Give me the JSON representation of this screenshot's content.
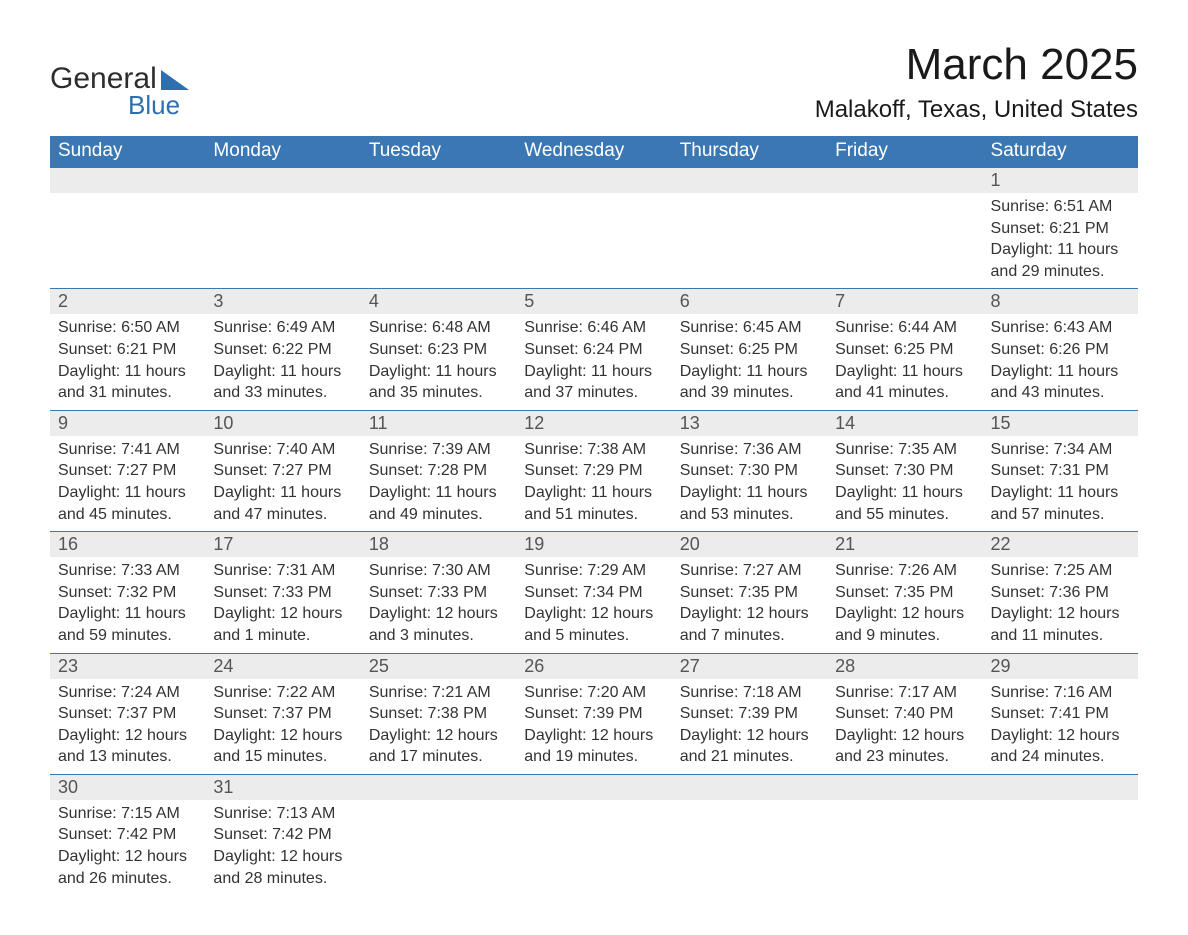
{
  "brand": {
    "word1": "General",
    "word2": "Blue",
    "accent_color": "#2e6fb0"
  },
  "title": "March 2025",
  "location": "Malakoff, Texas, United States",
  "header_bg": "#3a77b3",
  "daynum_bg": "#ececec",
  "weekdays": [
    "Sunday",
    "Monday",
    "Tuesday",
    "Wednesday",
    "Thursday",
    "Friday",
    "Saturday"
  ],
  "weeks": [
    [
      null,
      null,
      null,
      null,
      null,
      null,
      {
        "n": "1",
        "sr": "Sunrise: 6:51 AM",
        "ss": "Sunset: 6:21 PM",
        "dl": "Daylight: 11 hours and 29 minutes."
      }
    ],
    [
      {
        "n": "2",
        "sr": "Sunrise: 6:50 AM",
        "ss": "Sunset: 6:21 PM",
        "dl": "Daylight: 11 hours and 31 minutes."
      },
      {
        "n": "3",
        "sr": "Sunrise: 6:49 AM",
        "ss": "Sunset: 6:22 PM",
        "dl": "Daylight: 11 hours and 33 minutes."
      },
      {
        "n": "4",
        "sr": "Sunrise: 6:48 AM",
        "ss": "Sunset: 6:23 PM",
        "dl": "Daylight: 11 hours and 35 minutes."
      },
      {
        "n": "5",
        "sr": "Sunrise: 6:46 AM",
        "ss": "Sunset: 6:24 PM",
        "dl": "Daylight: 11 hours and 37 minutes."
      },
      {
        "n": "6",
        "sr": "Sunrise: 6:45 AM",
        "ss": "Sunset: 6:25 PM",
        "dl": "Daylight: 11 hours and 39 minutes."
      },
      {
        "n": "7",
        "sr": "Sunrise: 6:44 AM",
        "ss": "Sunset: 6:25 PM",
        "dl": "Daylight: 11 hours and 41 minutes."
      },
      {
        "n": "8",
        "sr": "Sunrise: 6:43 AM",
        "ss": "Sunset: 6:26 PM",
        "dl": "Daylight: 11 hours and 43 minutes."
      }
    ],
    [
      {
        "n": "9",
        "sr": "Sunrise: 7:41 AM",
        "ss": "Sunset: 7:27 PM",
        "dl": "Daylight: 11 hours and 45 minutes."
      },
      {
        "n": "10",
        "sr": "Sunrise: 7:40 AM",
        "ss": "Sunset: 7:27 PM",
        "dl": "Daylight: 11 hours and 47 minutes."
      },
      {
        "n": "11",
        "sr": "Sunrise: 7:39 AM",
        "ss": "Sunset: 7:28 PM",
        "dl": "Daylight: 11 hours and 49 minutes."
      },
      {
        "n": "12",
        "sr": "Sunrise: 7:38 AM",
        "ss": "Sunset: 7:29 PM",
        "dl": "Daylight: 11 hours and 51 minutes."
      },
      {
        "n": "13",
        "sr": "Sunrise: 7:36 AM",
        "ss": "Sunset: 7:30 PM",
        "dl": "Daylight: 11 hours and 53 minutes."
      },
      {
        "n": "14",
        "sr": "Sunrise: 7:35 AM",
        "ss": "Sunset: 7:30 PM",
        "dl": "Daylight: 11 hours and 55 minutes."
      },
      {
        "n": "15",
        "sr": "Sunrise: 7:34 AM",
        "ss": "Sunset: 7:31 PM",
        "dl": "Daylight: 11 hours and 57 minutes."
      }
    ],
    [
      {
        "n": "16",
        "sr": "Sunrise: 7:33 AM",
        "ss": "Sunset: 7:32 PM",
        "dl": "Daylight: 11 hours and 59 minutes."
      },
      {
        "n": "17",
        "sr": "Sunrise: 7:31 AM",
        "ss": "Sunset: 7:33 PM",
        "dl": "Daylight: 12 hours and 1 minute."
      },
      {
        "n": "18",
        "sr": "Sunrise: 7:30 AM",
        "ss": "Sunset: 7:33 PM",
        "dl": "Daylight: 12 hours and 3 minutes."
      },
      {
        "n": "19",
        "sr": "Sunrise: 7:29 AM",
        "ss": "Sunset: 7:34 PM",
        "dl": "Daylight: 12 hours and 5 minutes."
      },
      {
        "n": "20",
        "sr": "Sunrise: 7:27 AM",
        "ss": "Sunset: 7:35 PM",
        "dl": "Daylight: 12 hours and 7 minutes."
      },
      {
        "n": "21",
        "sr": "Sunrise: 7:26 AM",
        "ss": "Sunset: 7:35 PM",
        "dl": "Daylight: 12 hours and 9 minutes."
      },
      {
        "n": "22",
        "sr": "Sunrise: 7:25 AM",
        "ss": "Sunset: 7:36 PM",
        "dl": "Daylight: 12 hours and 11 minutes."
      }
    ],
    [
      {
        "n": "23",
        "sr": "Sunrise: 7:24 AM",
        "ss": "Sunset: 7:37 PM",
        "dl": "Daylight: 12 hours and 13 minutes."
      },
      {
        "n": "24",
        "sr": "Sunrise: 7:22 AM",
        "ss": "Sunset: 7:37 PM",
        "dl": "Daylight: 12 hours and 15 minutes."
      },
      {
        "n": "25",
        "sr": "Sunrise: 7:21 AM",
        "ss": "Sunset: 7:38 PM",
        "dl": "Daylight: 12 hours and 17 minutes."
      },
      {
        "n": "26",
        "sr": "Sunrise: 7:20 AM",
        "ss": "Sunset: 7:39 PM",
        "dl": "Daylight: 12 hours and 19 minutes."
      },
      {
        "n": "27",
        "sr": "Sunrise: 7:18 AM",
        "ss": "Sunset: 7:39 PM",
        "dl": "Daylight: 12 hours and 21 minutes."
      },
      {
        "n": "28",
        "sr": "Sunrise: 7:17 AM",
        "ss": "Sunset: 7:40 PM",
        "dl": "Daylight: 12 hours and 23 minutes."
      },
      {
        "n": "29",
        "sr": "Sunrise: 7:16 AM",
        "ss": "Sunset: 7:41 PM",
        "dl": "Daylight: 12 hours and 24 minutes."
      }
    ],
    [
      {
        "n": "30",
        "sr": "Sunrise: 7:15 AM",
        "ss": "Sunset: 7:42 PM",
        "dl": "Daylight: 12 hours and 26 minutes."
      },
      {
        "n": "31",
        "sr": "Sunrise: 7:13 AM",
        "ss": "Sunset: 7:42 PM",
        "dl": "Daylight: 12 hours and 28 minutes."
      },
      null,
      null,
      null,
      null,
      null
    ]
  ]
}
